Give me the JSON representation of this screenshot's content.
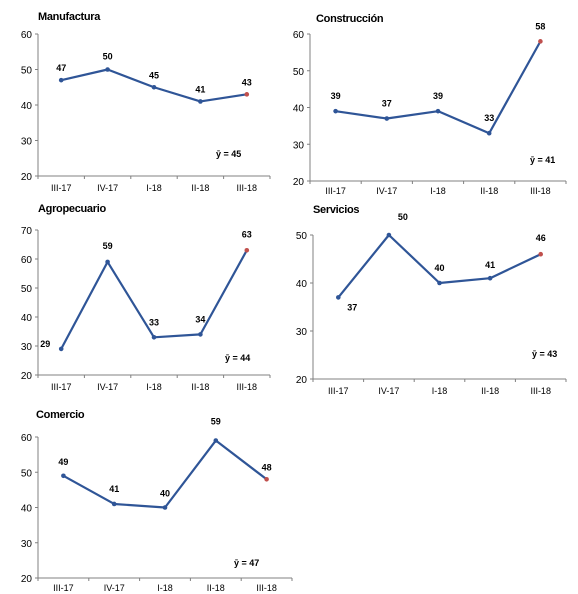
{
  "styles": {
    "line_color": "#2f5597",
    "last_point_color": "#c0504d",
    "axis_color": "#808080",
    "text_color": "#000000"
  },
  "chart_data": [
    {
      "type": "line",
      "title": "Manufactura",
      "categories": [
        "III-17",
        "IV-17",
        "I-18",
        "II-18",
        "III-18"
      ],
      "values": [
        47,
        50,
        45,
        41,
        43
      ],
      "ylim": [
        20,
        60
      ],
      "yticks": [
        20,
        30,
        40,
        50,
        60
      ],
      "note": "ȳ = 45",
      "grid": false
    },
    {
      "type": "line",
      "title": "Construcción",
      "categories": [
        "III-17",
        "IV-17",
        "I-18",
        "II-18",
        "III-18"
      ],
      "values": [
        39,
        37,
        39,
        33,
        58
      ],
      "ylim": [
        20,
        60
      ],
      "yticks": [
        20,
        30,
        40,
        50,
        60
      ],
      "note": "ȳ = 41",
      "grid": false
    },
    {
      "type": "line",
      "title": "Agropecuario",
      "categories": [
        "III-17",
        "IV-17",
        "I-18",
        "II-18",
        "III-18"
      ],
      "values": [
        29,
        59,
        33,
        34,
        63
      ],
      "ylim": [
        20,
        70
      ],
      "yticks": [
        20,
        30,
        40,
        50,
        60,
        70
      ],
      "note": "ȳ = 44",
      "grid": false
    },
    {
      "type": "line",
      "title": "Servicios",
      "categories": [
        "III-17",
        "IV-17",
        "I-18",
        "II-18",
        "III-18"
      ],
      "values": [
        37,
        50,
        40,
        41,
        46
      ],
      "ylim": [
        20,
        50
      ],
      "yticks": [
        20,
        30,
        40,
        50
      ],
      "note": "ȳ = 43",
      "grid": false
    },
    {
      "type": "line",
      "title": "Comercio",
      "categories": [
        "III-17",
        "IV-17",
        "I-18",
        "II-18",
        "III-18"
      ],
      "values": [
        49,
        41,
        40,
        59,
        48
      ],
      "ylim": [
        20,
        60
      ],
      "yticks": [
        20,
        30,
        40,
        50,
        60
      ],
      "note": "ȳ = 47",
      "grid": false
    }
  ]
}
